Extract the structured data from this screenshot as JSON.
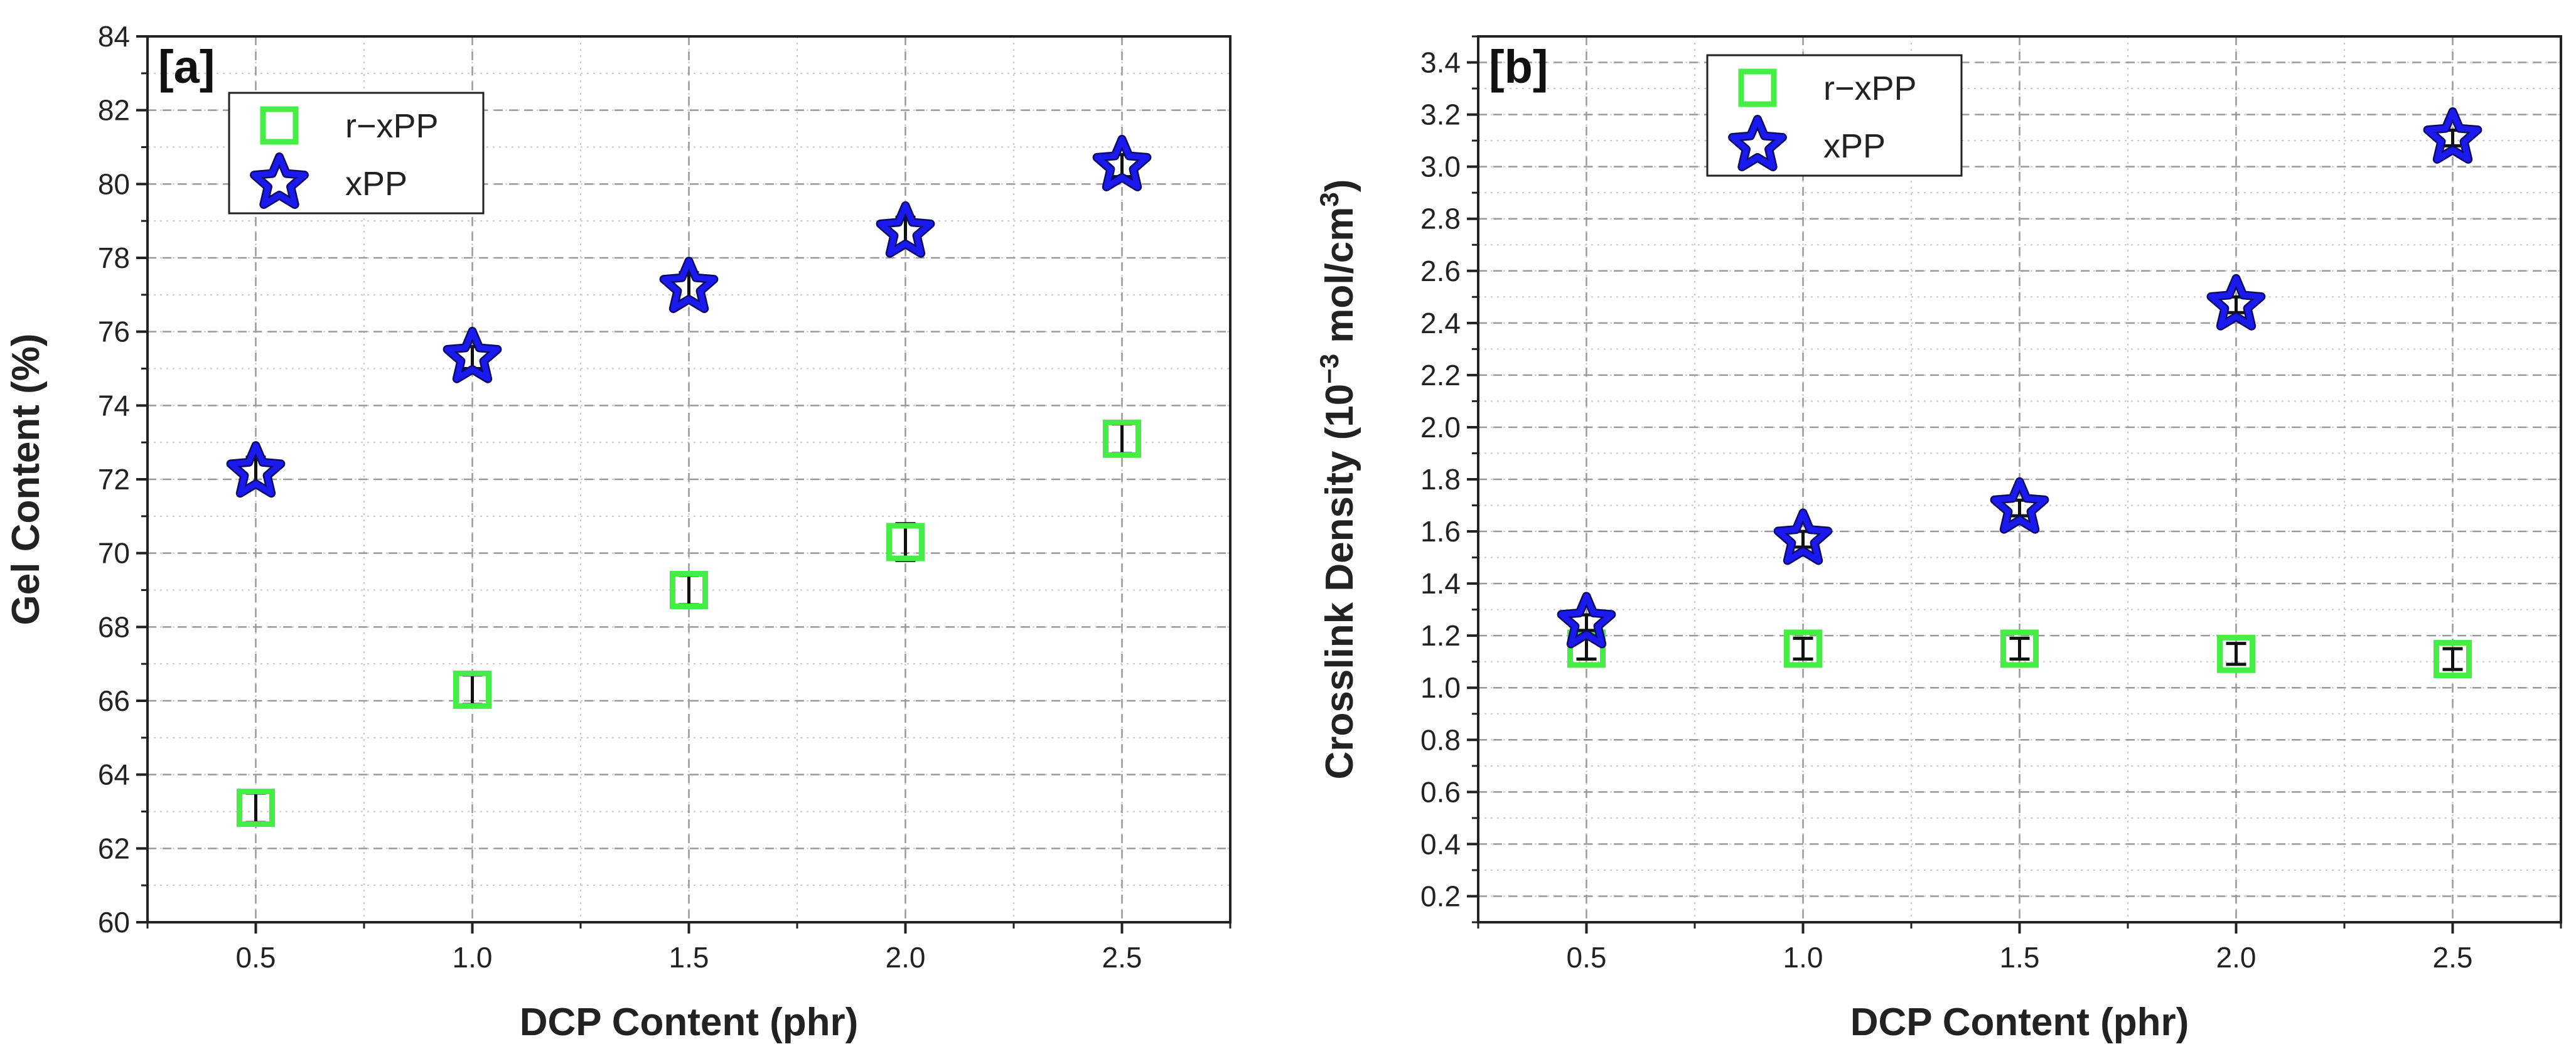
{
  "chart_data": [
    {
      "type": "scatter",
      "panel_label": "[a]",
      "xlabel": "DCP Content (phr)",
      "ylabel": "Gel Content (%)",
      "xlim": [
        0.25,
        2.75
      ],
      "ylim": [
        60,
        84
      ],
      "x_ticks": [
        0.5,
        1.0,
        1.5,
        2.0,
        2.5
      ],
      "y_ticks": [
        60,
        62,
        64,
        66,
        68,
        70,
        72,
        74,
        76,
        78,
        80,
        82,
        84
      ],
      "x_tick_labels": [
        "0.5",
        "1.0",
        "1.5",
        "2.0",
        "2.5"
      ],
      "y_tick_labels": [
        "60",
        "62",
        "64",
        "66",
        "68",
        "70",
        "72",
        "74",
        "76",
        "78",
        "80",
        "82",
        "84"
      ],
      "grid": true,
      "legend_position": "top-left",
      "series": [
        {
          "name": "r−xPP",
          "marker": "square",
          "color": "#44ee44",
          "x": [
            0.5,
            1.0,
            1.5,
            2.0,
            2.5
          ],
          "y": [
            63.1,
            66.3,
            69.0,
            70.3,
            73.1
          ],
          "err": [
            0.4,
            0.4,
            0.4,
            0.5,
            0.4
          ]
        },
        {
          "name": "xPP",
          "marker": "star",
          "color": "#1a1aee",
          "x": [
            0.5,
            1.0,
            1.5,
            2.0,
            2.5
          ],
          "y": [
            72.2,
            75.3,
            77.2,
            78.7,
            80.5
          ],
          "err": [
            0.4,
            0.3,
            0.4,
            0.4,
            0.3
          ]
        }
      ]
    },
    {
      "type": "scatter",
      "panel_label": "[b]",
      "xlabel": "DCP Content (phr)",
      "ylabel_main": "Crosslink Density (10",
      "ylabel_sup": "−3",
      "ylabel_mid": " mol/cm",
      "ylabel_sup2": "3",
      "ylabel_end": ")",
      "xlim": [
        0.25,
        2.75
      ],
      "ylim": [
        0.1,
        3.5
      ],
      "x_ticks": [
        0.5,
        1.0,
        1.5,
        2.0,
        2.5
      ],
      "y_ticks": [
        0.2,
        0.4,
        0.6,
        0.8,
        1.0,
        1.2,
        1.4,
        1.6,
        1.8,
        2.0,
        2.2,
        2.4,
        2.6,
        2.8,
        3.0,
        3.2,
        3.4
      ],
      "x_tick_labels": [
        "0.5",
        "1.0",
        "1.5",
        "2.0",
        "2.5"
      ],
      "y_tick_labels": [
        "0.2",
        "0.4",
        "0.6",
        "0.8",
        "1.0",
        "1.2",
        "1.4",
        "1.6",
        "1.8",
        "2.0",
        "2.2",
        "2.4",
        "2.6",
        "2.8",
        "3.0",
        "3.2",
        "3.4"
      ],
      "grid": true,
      "legend_position": "top-left",
      "series": [
        {
          "name": "r−xPP",
          "marker": "square",
          "color": "#44ee44",
          "x": [
            0.5,
            1.0,
            1.5,
            2.0,
            2.5
          ],
          "y": [
            1.15,
            1.15,
            1.15,
            1.13,
            1.11
          ],
          "err": [
            0.04,
            0.04,
            0.04,
            0.04,
            0.04
          ]
        },
        {
          "name": "xPP",
          "marker": "star",
          "color": "#1a1aee",
          "x": [
            0.5,
            1.0,
            1.5,
            2.0,
            2.5
          ],
          "y": [
            1.25,
            1.57,
            1.69,
            2.47,
            3.11
          ],
          "err": [
            0.03,
            0.03,
            0.03,
            0.03,
            0.03
          ]
        }
      ]
    }
  ]
}
